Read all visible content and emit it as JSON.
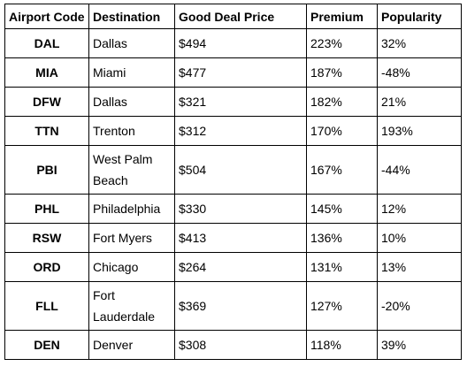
{
  "table": {
    "headers": [
      "Airport Code",
      "Destination",
      "Good Deal Price",
      "Premium",
      "Popularity"
    ],
    "rows": [
      {
        "code": "DAL",
        "destination": "Dallas",
        "price": "$494",
        "premium": "223%",
        "popularity": "32%"
      },
      {
        "code": "MIA",
        "destination": "Miami",
        "price": "$477",
        "premium": "187%",
        "popularity": "-48%"
      },
      {
        "code": "DFW",
        "destination": "Dallas",
        "price": "$321",
        "premium": "182%",
        "popularity": "21%"
      },
      {
        "code": "TTN",
        "destination": "Trenton",
        "price": "$312",
        "premium": "170%",
        "popularity": "193%"
      },
      {
        "code": "PBI",
        "destination": "West Palm Beach",
        "price": "$504",
        "premium": "167%",
        "popularity": "-44%"
      },
      {
        "code": "PHL",
        "destination": "Philadelphia",
        "price": "$330",
        "premium": "145%",
        "popularity": "12%"
      },
      {
        "code": "RSW",
        "destination": "Fort Myers",
        "price": "$413",
        "premium": "136%",
        "popularity": "10%"
      },
      {
        "code": "ORD",
        "destination": "Chicago",
        "price": "$264",
        "premium": "131%",
        "popularity": "13%"
      },
      {
        "code": "FLL",
        "destination": "Fort Lauderdale",
        "price": "$369",
        "premium": "127%",
        "popularity": "-20%"
      },
      {
        "code": "DEN",
        "destination": "Denver",
        "price": "$308",
        "premium": "118%",
        "popularity": "39%"
      }
    ]
  }
}
